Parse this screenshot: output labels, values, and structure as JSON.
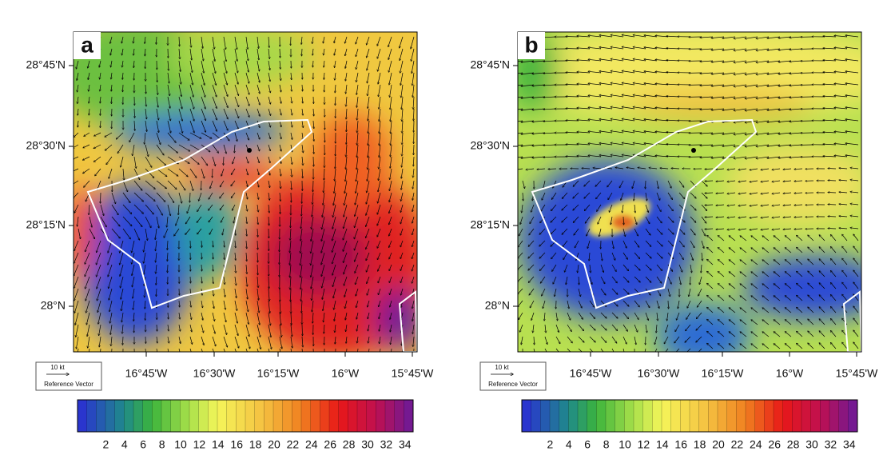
{
  "panels": [
    {
      "label": "a",
      "lat_ticks": [
        "28°45'N",
        "28°30'N",
        "28°15'N",
        "28°N"
      ],
      "lon_ticks": [
        "16°45'W",
        "16°30'W",
        "16°15'W",
        "16°W",
        "15°45'W"
      ],
      "reference": {
        "magnitude": "10 kt",
        "label": "Reference Vector"
      },
      "colorbar": {
        "ticks": [
          2,
          4,
          6,
          8,
          10,
          12,
          14,
          16,
          18,
          20,
          22,
          24,
          26,
          28,
          30,
          32,
          34
        ]
      }
    },
    {
      "label": "b",
      "lat_ticks": [
        "28°45'N",
        "28°30'N",
        "28°15'N",
        "28°N"
      ],
      "lon_ticks": [
        "16°45'W",
        "16°30'W",
        "16°15'W",
        "16°W",
        "15°45'W"
      ],
      "reference": {
        "magnitude": "10 kt",
        "label": "Reference Vector"
      },
      "colorbar": {
        "ticks": [
          2,
          4,
          6,
          8,
          10,
          12,
          14,
          16,
          18,
          20,
          22,
          24,
          26,
          28,
          30,
          32,
          34
        ]
      }
    }
  ]
}
